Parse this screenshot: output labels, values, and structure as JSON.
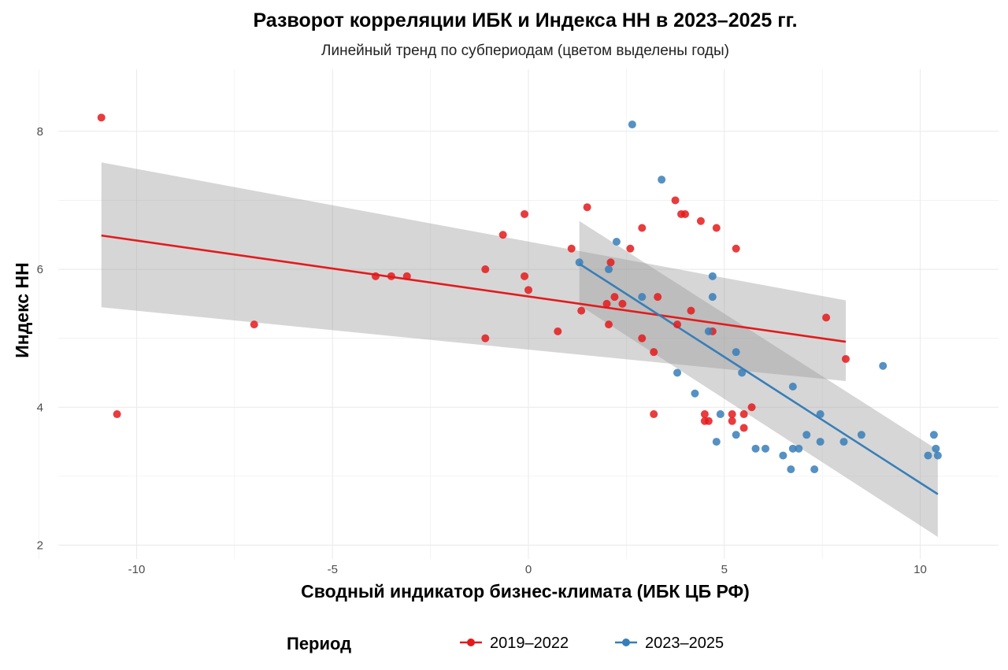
{
  "chart_data": {
    "type": "scatter",
    "title": "Разворот корреляции ИБК и Индекса НН в 2023–2025 гг.",
    "subtitle": "Линейный тренд по субпериодам (цветом выделены годы)",
    "xlabel": "Сводный индикатор бизнес-климата (ИБК ЦБ РФ)",
    "ylabel": "Индекс НН",
    "xlim": [
      -12,
      12
    ],
    "ylim": [
      1.8,
      8.9
    ],
    "x_ticks": [
      -10,
      -5,
      0,
      5,
      10
    ],
    "y_ticks": [
      2,
      4,
      6,
      8
    ],
    "grid": true,
    "legend": {
      "title": "Период",
      "position": "bottom"
    },
    "series": [
      {
        "name": "2019–2022",
        "color": "#e41a1c",
        "points": [
          [
            -10.9,
            8.2
          ],
          [
            -10.5,
            3.9
          ],
          [
            -7.0,
            5.2
          ],
          [
            -3.9,
            5.9
          ],
          [
            -3.5,
            5.9
          ],
          [
            -3.1,
            5.9
          ],
          [
            -1.1,
            6.0
          ],
          [
            -1.1,
            5.0
          ],
          [
            -0.65,
            6.5
          ],
          [
            -0.1,
            6.8
          ],
          [
            -0.1,
            5.9
          ],
          [
            0.0,
            5.7
          ],
          [
            0.75,
            5.1
          ],
          [
            1.1,
            6.3
          ],
          [
            1.5,
            6.9
          ],
          [
            1.35,
            5.4
          ],
          [
            2.1,
            6.1
          ],
          [
            2.0,
            5.5
          ],
          [
            2.05,
            5.2
          ],
          [
            2.2,
            5.6
          ],
          [
            2.4,
            5.5
          ],
          [
            2.6,
            6.3
          ],
          [
            2.9,
            6.6
          ],
          [
            2.9,
            5.0
          ],
          [
            3.2,
            4.8
          ],
          [
            3.3,
            5.6
          ],
          [
            3.2,
            3.9
          ],
          [
            3.75,
            7.0
          ],
          [
            3.9,
            6.8
          ],
          [
            4.0,
            6.8
          ],
          [
            3.8,
            5.2
          ],
          [
            4.15,
            5.4
          ],
          [
            4.4,
            6.7
          ],
          [
            4.8,
            6.6
          ],
          [
            4.7,
            5.1
          ],
          [
            4.5,
            3.9
          ],
          [
            4.5,
            3.8
          ],
          [
            4.6,
            3.8
          ],
          [
            5.3,
            6.3
          ],
          [
            5.2,
            3.9
          ],
          [
            5.2,
            3.8
          ],
          [
            5.5,
            3.9
          ],
          [
            5.5,
            3.7
          ],
          [
            5.7,
            4.0
          ],
          [
            7.6,
            5.3
          ],
          [
            8.1,
            4.7
          ]
        ],
        "trend": {
          "x": [
            -10.9,
            8.1
          ],
          "y": [
            6.49,
            4.95
          ]
        },
        "ci_band": {
          "x": [
            -10.9,
            8.1
          ],
          "upper": [
            7.55,
            5.55
          ],
          "lower": [
            5.45,
            4.38
          ]
        }
      },
      {
        "name": "2023–2025",
        "color": "#377eb8",
        "points": [
          [
            2.65,
            8.1
          ],
          [
            3.4,
            7.3
          ],
          [
            2.25,
            6.4
          ],
          [
            1.3,
            6.1
          ],
          [
            2.05,
            6.0
          ],
          [
            2.9,
            5.6
          ],
          [
            4.7,
            5.9
          ],
          [
            4.7,
            5.6
          ],
          [
            4.6,
            5.1
          ],
          [
            5.3,
            4.8
          ],
          [
            5.45,
            4.5
          ],
          [
            3.8,
            4.5
          ],
          [
            4.25,
            4.2
          ],
          [
            4.8,
            3.5
          ],
          [
            4.9,
            3.9
          ],
          [
            5.3,
            3.6
          ],
          [
            5.8,
            3.4
          ],
          [
            6.05,
            3.4
          ],
          [
            6.5,
            3.3
          ],
          [
            6.7,
            3.1
          ],
          [
            6.75,
            3.4
          ],
          [
            6.75,
            4.3
          ],
          [
            6.9,
            3.4
          ],
          [
            7.1,
            3.6
          ],
          [
            7.3,
            3.1
          ],
          [
            7.45,
            3.9
          ],
          [
            7.45,
            3.5
          ],
          [
            8.05,
            3.5
          ],
          [
            8.5,
            3.6
          ],
          [
            9.05,
            4.6
          ],
          [
            10.2,
            3.3
          ],
          [
            10.35,
            3.6
          ],
          [
            10.4,
            3.4
          ],
          [
            10.45,
            3.3
          ]
        ],
        "trend": {
          "x": [
            1.3,
            10.45
          ],
          "y": [
            6.08,
            2.74
          ]
        },
        "ci_band": {
          "x": [
            1.3,
            10.45
          ],
          "upper": [
            6.7,
            3.38
          ],
          "lower": [
            5.48,
            2.12
          ]
        }
      }
    ]
  }
}
